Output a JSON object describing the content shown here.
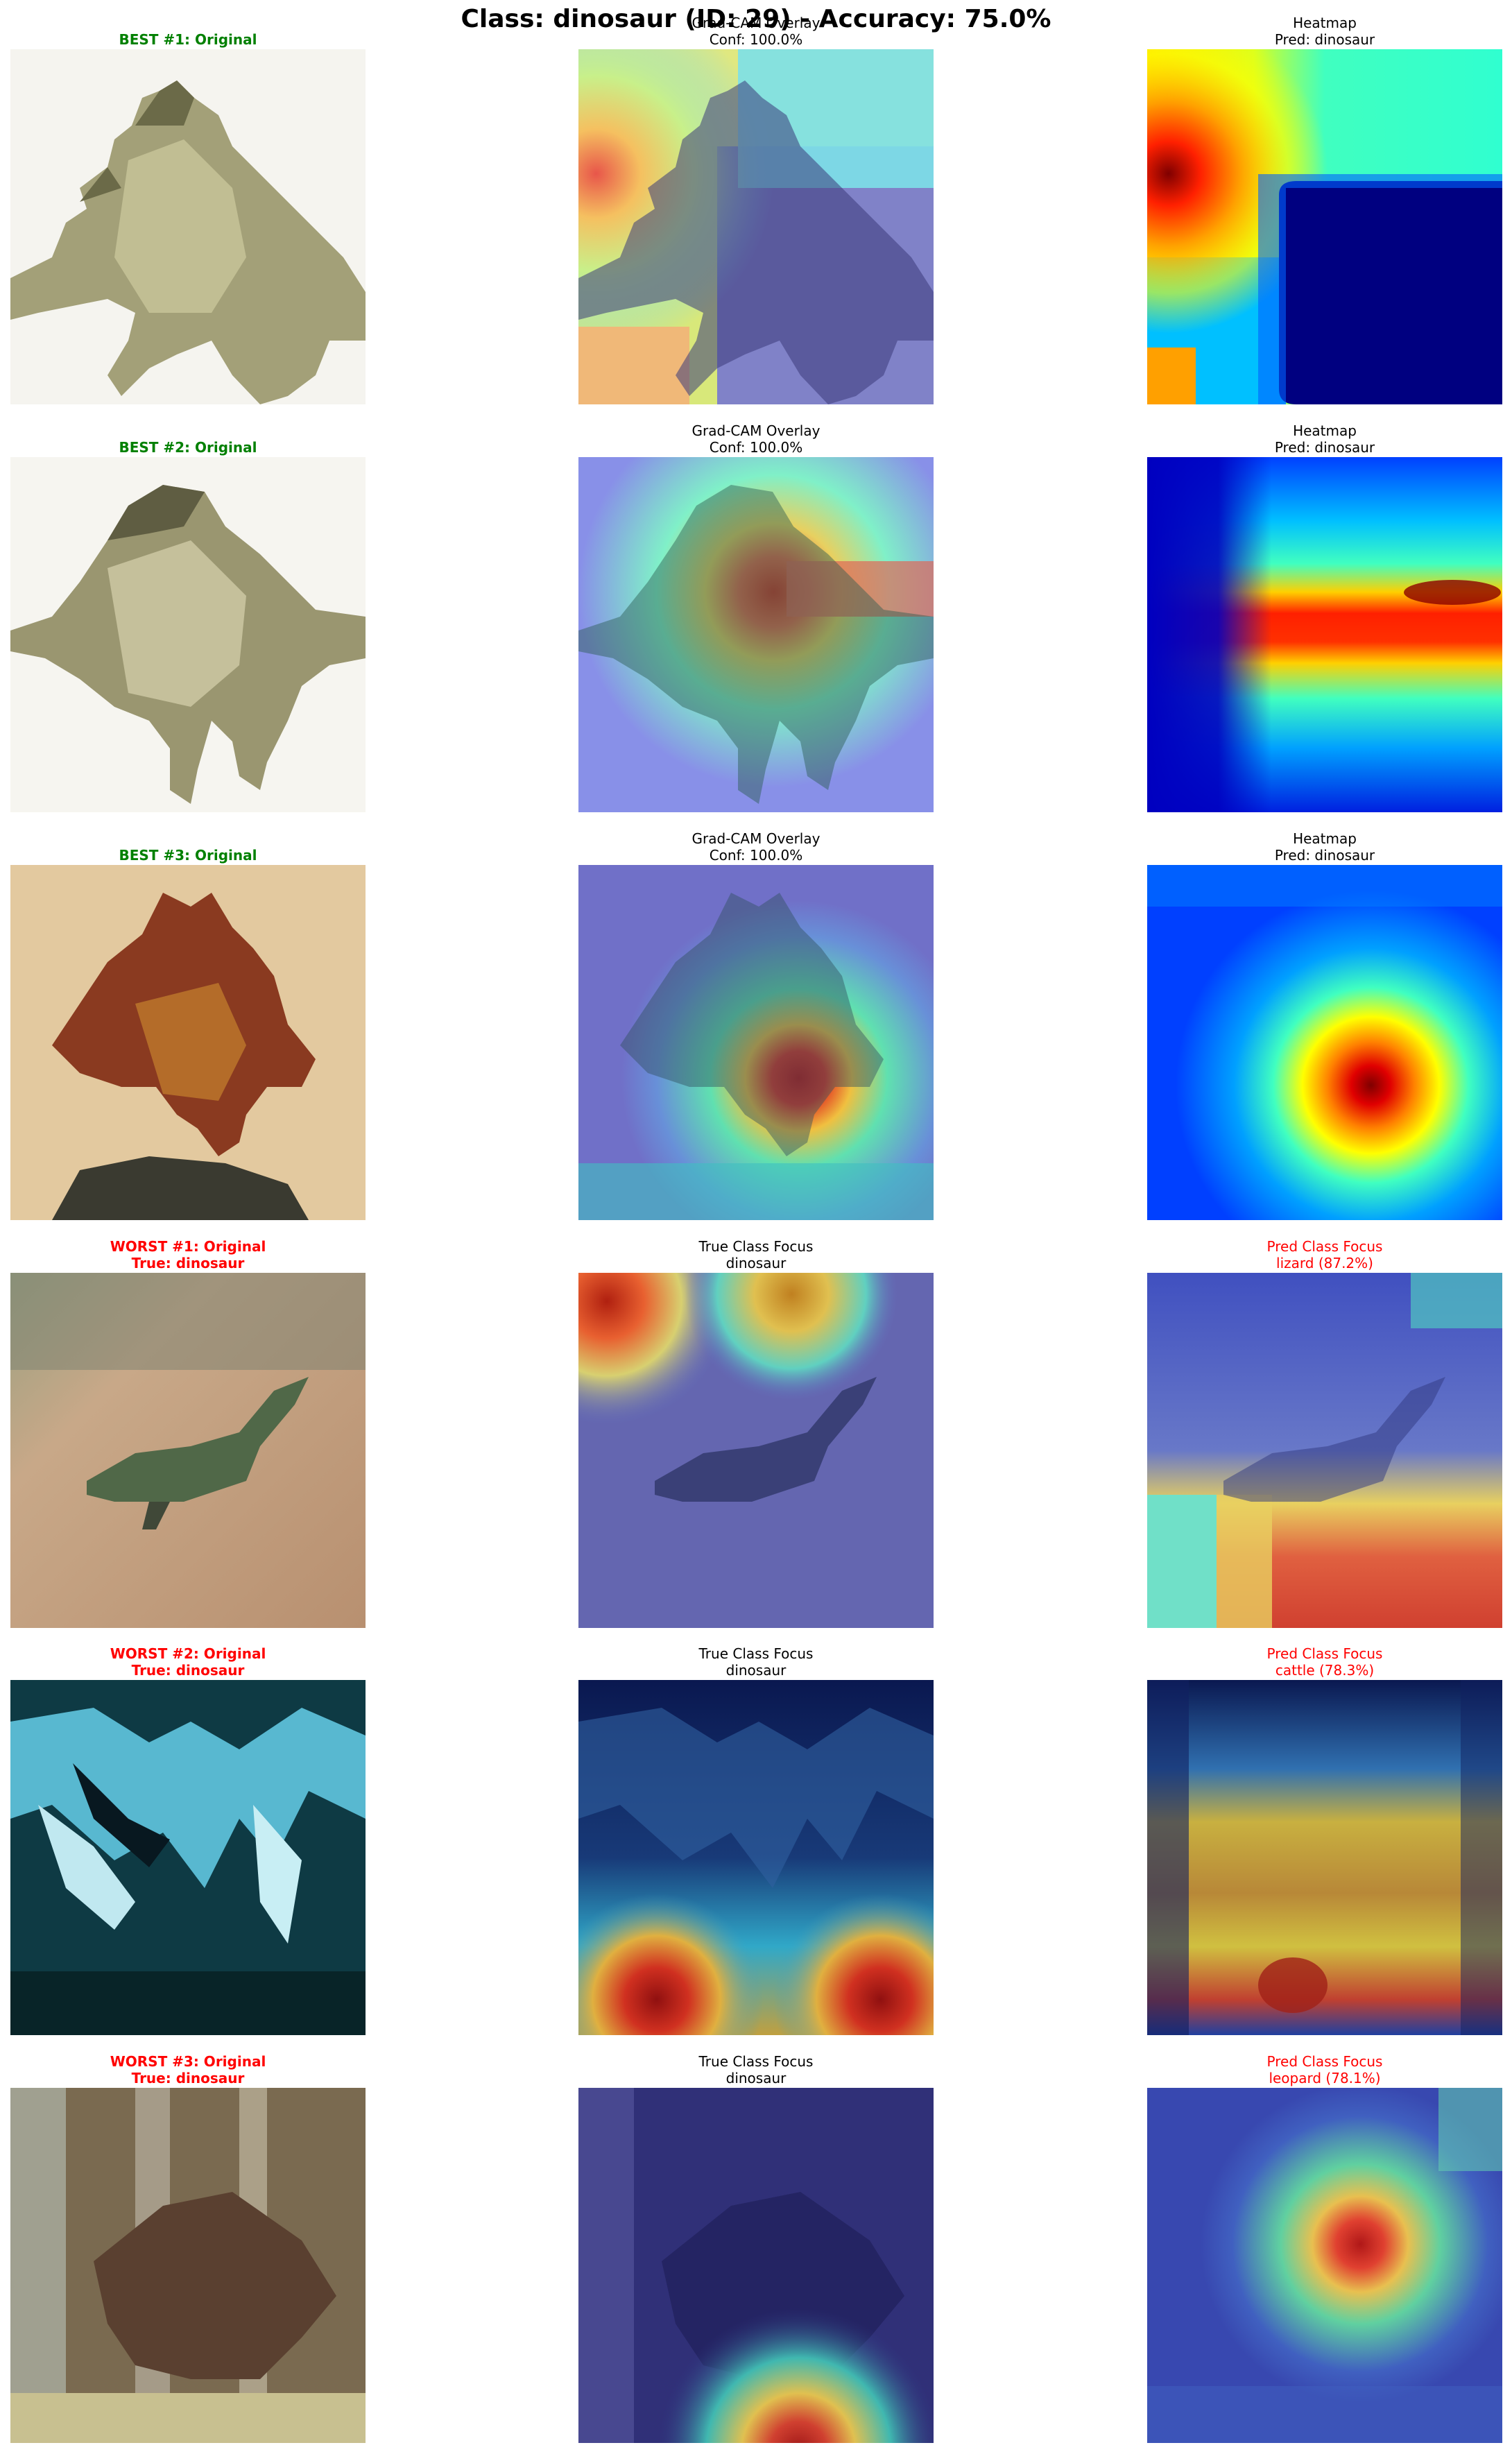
{
  "title": "Class: dinosaur (ID: 29) - Accuracy: 75.0%",
  "rows": [
    {
      "original": {
        "line1": "BEST #1: Original",
        "line2": ""
      },
      "middle": {
        "line1": "Grad-CAM Overlay",
        "line2": "Conf: 100.0%"
      },
      "right": {
        "line1": "Heatmap",
        "line2": "Pred: dinosaur"
      }
    },
    {
      "original": {
        "line1": "BEST #2: Original",
        "line2": ""
      },
      "middle": {
        "line1": "Grad-CAM Overlay",
        "line2": "Conf: 100.0%"
      },
      "right": {
        "line1": "Heatmap",
        "line2": "Pred: dinosaur"
      }
    },
    {
      "original": {
        "line1": "BEST #3: Original",
        "line2": ""
      },
      "middle": {
        "line1": "Grad-CAM Overlay",
        "line2": "Conf: 100.0%"
      },
      "right": {
        "line1": "Heatmap",
        "line2": "Pred: dinosaur"
      }
    },
    {
      "original": {
        "line1": "WORST #1: Original",
        "line2": "True: dinosaur"
      },
      "middle": {
        "line1": "True Class Focus",
        "line2": "dinosaur"
      },
      "right": {
        "line1": "Pred Class Focus",
        "line2": "lizard (87.2%)"
      }
    },
    {
      "original": {
        "line1": "WORST #2: Original",
        "line2": "True: dinosaur"
      },
      "middle": {
        "line1": "True Class Focus",
        "line2": "dinosaur"
      },
      "right": {
        "line1": "Pred Class Focus",
        "line2": "cattle (78.3%)"
      }
    },
    {
      "original": {
        "line1": "WORST #3: Original",
        "line2": "True: dinosaur"
      },
      "middle": {
        "line1": "True Class Focus",
        "line2": "dinosaur"
      },
      "right": {
        "line1": "Pred Class Focus",
        "line2": "leopard (78.1%)"
      }
    }
  ],
  "colors": {
    "best_label": "#008000",
    "worst_label": "#ff0000",
    "text": "#000000"
  },
  "icons": [
    "dinosaur-photo",
    "gradcam-overlay",
    "jet-heatmap"
  ]
}
